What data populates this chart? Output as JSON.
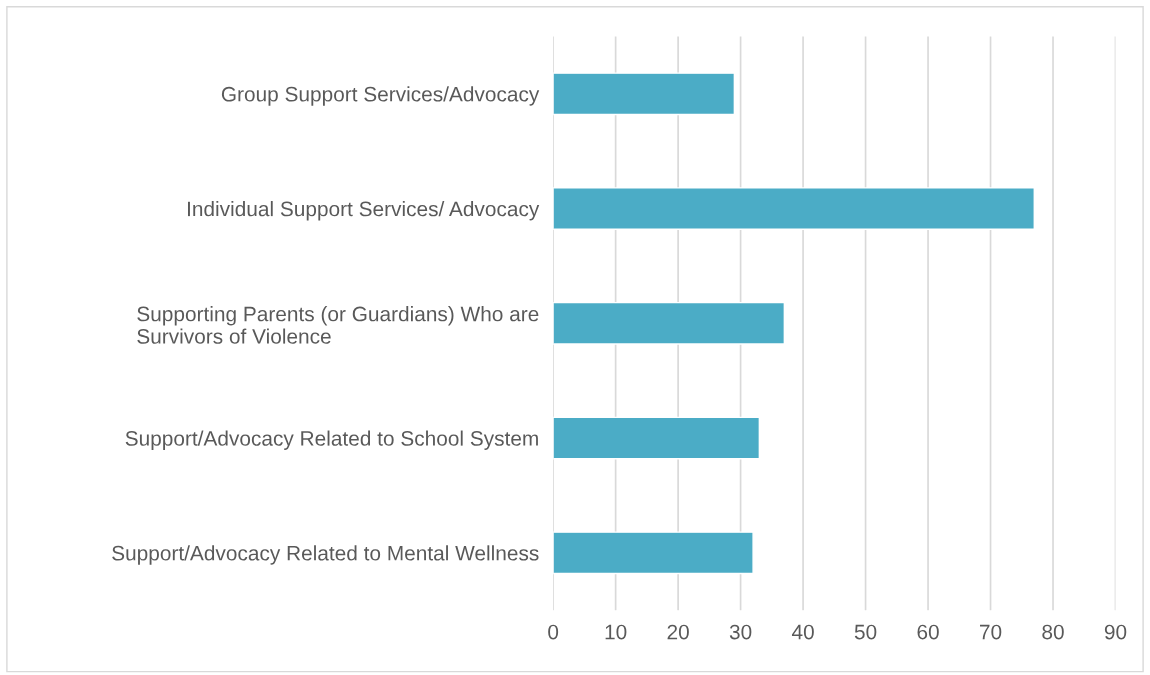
{
  "chart_data": {
    "type": "bar",
    "orientation": "horizontal",
    "categories": [
      "Group Support Services/Advocacy",
      "Individual Support Services/ Advocacy",
      "Supporting Parents (or Guardians) Who are\nSurvivors of Violence",
      "Support/Advocacy Related to School System",
      "Support/Advocacy Related to Mental Wellness"
    ],
    "values": [
      29,
      77,
      37,
      33,
      32
    ],
    "color": "#4bacc6",
    "xlim": [
      0,
      90
    ],
    "xticks": [
      0,
      10,
      20,
      30,
      40,
      50,
      60,
      70,
      80,
      90
    ],
    "grid": "x",
    "legend": false
  }
}
